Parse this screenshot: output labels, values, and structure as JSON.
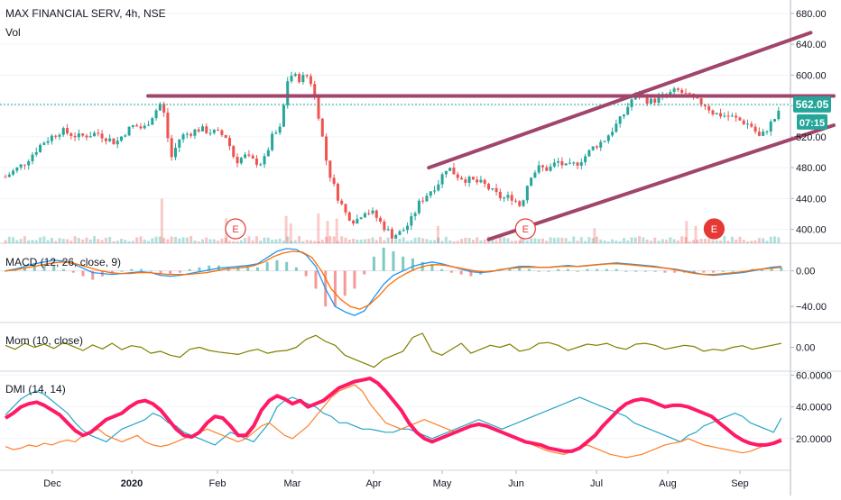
{
  "header": {
    "symbol_line": "MAX FINANCIAL SERV, 4h, NSE",
    "volume_label": "Vol"
  },
  "colors": {
    "candle_up": "#26a69a",
    "candle_down": "#ef5350",
    "trendline": "#a0456b",
    "last_price_bg": "#26a69a",
    "macd_line": "#2196f3",
    "macd_signal": "#ff6d00",
    "momentum": "#808000",
    "dmi_plus": "#26a6c5",
    "dmi_minus": "#ff7f2a",
    "adx": "#ff1a66",
    "earnings_marker": "#e53935"
  },
  "chart_data": [
    {
      "type": "candlestick",
      "panel": "price",
      "title": "MAX FINANCIAL SERV, 4h, NSE",
      "yticks": [
        400,
        440,
        480,
        520,
        560,
        600,
        640,
        680
      ],
      "ytick_labels": [
        "400.00",
        "440.00",
        "480.00",
        "520.00",
        "560.00",
        "600.00",
        "640.00",
        "680.00"
      ],
      "ylim": [
        382,
        695
      ],
      "last_price": "562.05",
      "countdown": "07:15",
      "path_points": [
        {
          "t": 0,
          "v": 468
        },
        {
          "t": 2,
          "v": 485
        },
        {
          "t": 4,
          "v": 512
        },
        {
          "t": 6,
          "v": 528
        },
        {
          "t": 8,
          "v": 520
        },
        {
          "t": 10,
          "v": 525
        },
        {
          "t": 12,
          "v": 512
        },
        {
          "t": 13,
          "v": 526
        },
        {
          "t": 14,
          "v": 535
        },
        {
          "t": 15,
          "v": 530
        },
        {
          "t": 16,
          "v": 548
        },
        {
          "t": 17,
          "v": 566
        },
        {
          "t": 18,
          "v": 492
        },
        {
          "t": 19,
          "v": 520
        },
        {
          "t": 21,
          "v": 530
        },
        {
          "t": 23,
          "v": 525
        },
        {
          "t": 24,
          "v": 520
        },
        {
          "t": 25,
          "v": 488
        },
        {
          "t": 26,
          "v": 495
        },
        {
          "t": 27,
          "v": 488
        },
        {
          "t": 28,
          "v": 486
        },
        {
          "t": 29,
          "v": 520
        },
        {
          "t": 30,
          "v": 532
        },
        {
          "t": 30.5,
          "v": 590
        },
        {
          "t": 31,
          "v": 600
        },
        {
          "t": 32,
          "v": 595
        },
        {
          "t": 32.5,
          "v": 598
        },
        {
          "t": 33,
          "v": 600
        },
        {
          "t": 34,
          "v": 550
        },
        {
          "t": 35,
          "v": 480
        },
        {
          "t": 36,
          "v": 445
        },
        {
          "t": 37,
          "v": 420
        },
        {
          "t": 38,
          "v": 410
        },
        {
          "t": 39,
          "v": 425
        },
        {
          "t": 40,
          "v": 420
        },
        {
          "t": 41,
          "v": 405
        },
        {
          "t": 42,
          "v": 392
        },
        {
          "t": 43,
          "v": 396
        },
        {
          "t": 44,
          "v": 410
        },
        {
          "t": 45,
          "v": 435
        },
        {
          "t": 46,
          "v": 448
        },
        {
          "t": 47,
          "v": 460
        },
        {
          "t": 48,
          "v": 482
        },
        {
          "t": 49,
          "v": 470
        },
        {
          "t": 50,
          "v": 465
        },
        {
          "t": 51,
          "v": 462
        },
        {
          "t": 52,
          "v": 458
        },
        {
          "t": 53,
          "v": 448
        },
        {
          "t": 54,
          "v": 440
        },
        {
          "t": 55,
          "v": 442
        },
        {
          "t": 56,
          "v": 430
        },
        {
          "t": 57,
          "v": 470
        },
        {
          "t": 58,
          "v": 480
        },
        {
          "t": 59,
          "v": 478
        },
        {
          "t": 60,
          "v": 488
        },
        {
          "t": 61,
          "v": 480
        },
        {
          "t": 62,
          "v": 485
        },
        {
          "t": 63,
          "v": 495
        },
        {
          "t": 64,
          "v": 508
        },
        {
          "t": 65,
          "v": 515
        },
        {
          "t": 66,
          "v": 530
        },
        {
          "t": 67,
          "v": 545
        },
        {
          "t": 68,
          "v": 568
        },
        {
          "t": 69,
          "v": 575
        },
        {
          "t": 70,
          "v": 565
        },
        {
          "t": 71,
          "v": 570
        },
        {
          "t": 72,
          "v": 575
        },
        {
          "t": 73,
          "v": 580
        },
        {
          "t": 74,
          "v": 574
        },
        {
          "t": 75,
          "v": 566
        },
        {
          "t": 76,
          "v": 562
        },
        {
          "t": 77,
          "v": 550
        },
        {
          "t": 78,
          "v": 548
        },
        {
          "t": 79,
          "v": 545
        },
        {
          "t": 80,
          "v": 540
        },
        {
          "t": 81,
          "v": 535
        },
        {
          "t": 82,
          "v": 518
        },
        {
          "t": 83,
          "v": 535
        },
        {
          "t": 84,
          "v": 550
        },
        {
          "t": 84.3,
          "v": 562
        }
      ],
      "volume_spikes": [
        {
          "t": 17,
          "v": 0.9
        },
        {
          "t": 24,
          "v": 0.5
        },
        {
          "t": 30.5,
          "v": 0.55
        },
        {
          "t": 31,
          "v": 0.4
        },
        {
          "t": 34,
          "v": 0.6
        },
        {
          "t": 35,
          "v": 0.45
        },
        {
          "t": 36,
          "v": 0.5
        },
        {
          "t": 47,
          "v": 0.35
        },
        {
          "t": 56,
          "v": 0.4
        },
        {
          "t": 64,
          "v": 0.3
        },
        {
          "t": 74,
          "v": 0.45
        },
        {
          "t": 75,
          "v": 0.35
        }
      ],
      "earnings_markers": [
        {
          "t": 25,
          "label": "E",
          "style": "outline"
        },
        {
          "t": 56.5,
          "label": "E",
          "style": "outline"
        },
        {
          "t": 77,
          "label": "E",
          "style": "filled"
        }
      ],
      "trendlines": [
        {
          "t1": 15.5,
          "v1": 573,
          "t2": 90,
          "v2": 573
        },
        {
          "t1": 46,
          "v1": 480,
          "t2": 87.5,
          "v2": 655
        },
        {
          "t1": 52.5,
          "v1": 387,
          "t2": 90,
          "v2": 535
        }
      ]
    },
    {
      "type": "line",
      "panel": "macd",
      "title": "MACD (12, 26, close, 9)",
      "yticks": [
        0,
        -40
      ],
      "ytick_labels": [
        "0.00",
        "−40.00"
      ],
      "ylim": [
        -58,
        30
      ],
      "series": [
        {
          "role": "macd",
          "values": [
            0,
            2,
            5,
            8,
            10,
            12,
            11,
            8,
            3,
            -2,
            -3,
            -4,
            -3,
            -2,
            -1,
            -2,
            -5,
            -6,
            -5,
            -3,
            -1,
            1,
            3,
            4,
            5,
            6,
            8,
            15,
            22,
            25,
            24,
            18,
            5,
            -20,
            -40,
            -46,
            -50,
            -45,
            -30,
            -15,
            -5,
            0,
            5,
            8,
            10,
            8,
            5,
            2,
            -1,
            -2,
            -1,
            1,
            3,
            5,
            5,
            4,
            4,
            5,
            6,
            5,
            6,
            7,
            8,
            9,
            8,
            7,
            6,
            5,
            3,
            2,
            0,
            -2,
            -4,
            -5,
            -4,
            -3,
            -2,
            0,
            2,
            4,
            5
          ]
        },
        {
          "role": "signal",
          "values": [
            0,
            1,
            3,
            5,
            7,
            9,
            10,
            9,
            6,
            3,
            0,
            -2,
            -3,
            -3,
            -2,
            -2,
            -3,
            -4,
            -4,
            -4,
            -3,
            -2,
            0,
            2,
            3,
            4,
            6,
            10,
            16,
            20,
            22,
            21,
            15,
            0,
            -20,
            -32,
            -40,
            -43,
            -38,
            -28,
            -16,
            -8,
            -2,
            3,
            6,
            7,
            6,
            4,
            2,
            0,
            -1,
            0,
            2,
            3,
            4,
            4,
            4,
            4,
            5,
            5,
            5,
            6,
            7,
            8,
            8,
            7,
            6,
            5,
            4,
            3,
            1,
            -1,
            -3,
            -4,
            -4,
            -3,
            -2,
            -1,
            1,
            2,
            3,
            4
          ]
        }
      ]
    },
    {
      "type": "line",
      "panel": "momentum",
      "title": "Mom (10, close)",
      "yticks": [
        0
      ],
      "ytick_labels": [
        "0.00"
      ],
      "ylim": [
        -60,
        60
      ],
      "series": [
        {
          "role": "momentum",
          "values": [
            5,
            -5,
            10,
            0,
            8,
            -3,
            12,
            2,
            -8,
            6,
            -4,
            10,
            -6,
            4,
            0,
            -15,
            -10,
            -20,
            -25,
            -5,
            0,
            -8,
            -12,
            -15,
            -18,
            -10,
            -5,
            -15,
            -10,
            -8,
            0,
            20,
            30,
            15,
            5,
            -20,
            -30,
            -40,
            -50,
            -30,
            -20,
            -10,
            25,
            35,
            -10,
            -20,
            -5,
            10,
            -15,
            -5,
            5,
            0,
            8,
            -10,
            -5,
            10,
            12,
            5,
            -8,
            0,
            8,
            5,
            10,
            0,
            -5,
            8,
            10,
            5,
            -5,
            0,
            5,
            2,
            -10,
            -5,
            -8,
            0,
            4,
            -5,
            0,
            5,
            10
          ]
        }
      ]
    },
    {
      "type": "line",
      "panel": "dmi",
      "title": "DMI (14, 14)",
      "yticks": [
        20,
        40,
        60
      ],
      "ytick_labels": [
        "20.0000",
        "40.0000",
        "60.0000"
      ],
      "ylim": [
        0,
        62
      ],
      "series": [
        {
          "role": "adx",
          "values": [
            33,
            36,
            40,
            42,
            43,
            41,
            38,
            35,
            30,
            25,
            22,
            24,
            28,
            32,
            34,
            36,
            40,
            43,
            44,
            42,
            38,
            32,
            26,
            22,
            21,
            24,
            30,
            34,
            33,
            28,
            22,
            22,
            28,
            38,
            44,
            47,
            45,
            42,
            44,
            40,
            42,
            44,
            48,
            52,
            54,
            56,
            57,
            58,
            55,
            50,
            44,
            38,
            30,
            24,
            20,
            18,
            20,
            22,
            24,
            26,
            28,
            29,
            28,
            26,
            24,
            22,
            20,
            18,
            17,
            16,
            14,
            13,
            12,
            12,
            14,
            18,
            22,
            28,
            33,
            38,
            42,
            44,
            45,
            44,
            42,
            40,
            41,
            41,
            40,
            38,
            36,
            34,
            30,
            26,
            22,
            19,
            17,
            16,
            16,
            17,
            19
          ]
        },
        {
          "role": "di_plus",
          "values": [
            35,
            40,
            45,
            48,
            50,
            48,
            44,
            40,
            36,
            30,
            25,
            22,
            20,
            18,
            22,
            26,
            28,
            30,
            32,
            36,
            34,
            30,
            28,
            24,
            22,
            20,
            18,
            16,
            20,
            24,
            22,
            20,
            18,
            24,
            30,
            40,
            44,
            46,
            44,
            42,
            40,
            36,
            34,
            30,
            30,
            28,
            26,
            26,
            25,
            24,
            24,
            26,
            26,
            24,
            22,
            20,
            22,
            24,
            26,
            28,
            30,
            32,
            30,
            28,
            26,
            28,
            30,
            32,
            34,
            36,
            38,
            40,
            42,
            44,
            46,
            44,
            42,
            40,
            38,
            36,
            34,
            30,
            28,
            26,
            24,
            22,
            20,
            18,
            22,
            24,
            28,
            30,
            32,
            34,
            36,
            34,
            30,
            28,
            26,
            24,
            33
          ]
        },
        {
          "role": "di_minus",
          "values": [
            15,
            13,
            14,
            16,
            15,
            17,
            16,
            18,
            19,
            18,
            22,
            24,
            26,
            22,
            20,
            18,
            20,
            22,
            18,
            16,
            15,
            16,
            18,
            20,
            22,
            24,
            26,
            24,
            22,
            20,
            18,
            20,
            24,
            28,
            30,
            26,
            22,
            20,
            24,
            28,
            34,
            40,
            46,
            50,
            52,
            54,
            50,
            42,
            36,
            30,
            28,
            26,
            28,
            30,
            32,
            30,
            28,
            26,
            24,
            26,
            28,
            30,
            28,
            26,
            24,
            22,
            20,
            18,
            16,
            14,
            12,
            11,
            10,
            12,
            14,
            16,
            14,
            12,
            10,
            9,
            8,
            9,
            10,
            12,
            14,
            16,
            17,
            18,
            20,
            18,
            16,
            15,
            14,
            13,
            12,
            11,
            12,
            14,
            16,
            18,
            20
          ]
        }
      ]
    }
  ],
  "x_axis": {
    "labels": [
      "Dec",
      "2020",
      "Feb",
      "Mar",
      "Apr",
      "May",
      "Jun",
      "Jul",
      "Aug",
      "Sep"
    ]
  }
}
